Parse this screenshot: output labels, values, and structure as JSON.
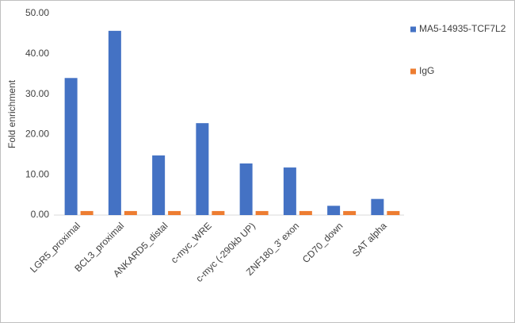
{
  "chart_data": {
    "type": "bar",
    "y_label": "Fold enrichment",
    "categories": [
      "LGR5_proximal",
      "BCL3_proximal",
      "ANKARD5_distal",
      "c-myc_WRE",
      "c-myc (-290kb UP)",
      "ZNF180_3' exon",
      "CD70_down",
      "SAT alpha"
    ],
    "series": [
      {
        "name": "MA5-14935-TCF7L2",
        "color": "#4472c4",
        "values": [
          34.0,
          45.7,
          14.8,
          22.8,
          12.8,
          11.8,
          2.3,
          4.0
        ]
      },
      {
        "name": "IgG",
        "color": "#ed7d31",
        "values": [
          1.0,
          1.0,
          1.0,
          1.0,
          1.0,
          1.0,
          1.0,
          1.0
        ]
      }
    ],
    "ylim": [
      0,
      50
    ],
    "yticks": [
      {
        "value": 0,
        "label": "0.00"
      },
      {
        "value": 10,
        "label": "10.00"
      },
      {
        "value": 20,
        "label": "20.00"
      },
      {
        "value": 30,
        "label": "30.00"
      },
      {
        "value": 40,
        "label": "40.00"
      },
      {
        "value": 50,
        "label": "50.00"
      }
    ],
    "grid": false,
    "legend": "right"
  }
}
